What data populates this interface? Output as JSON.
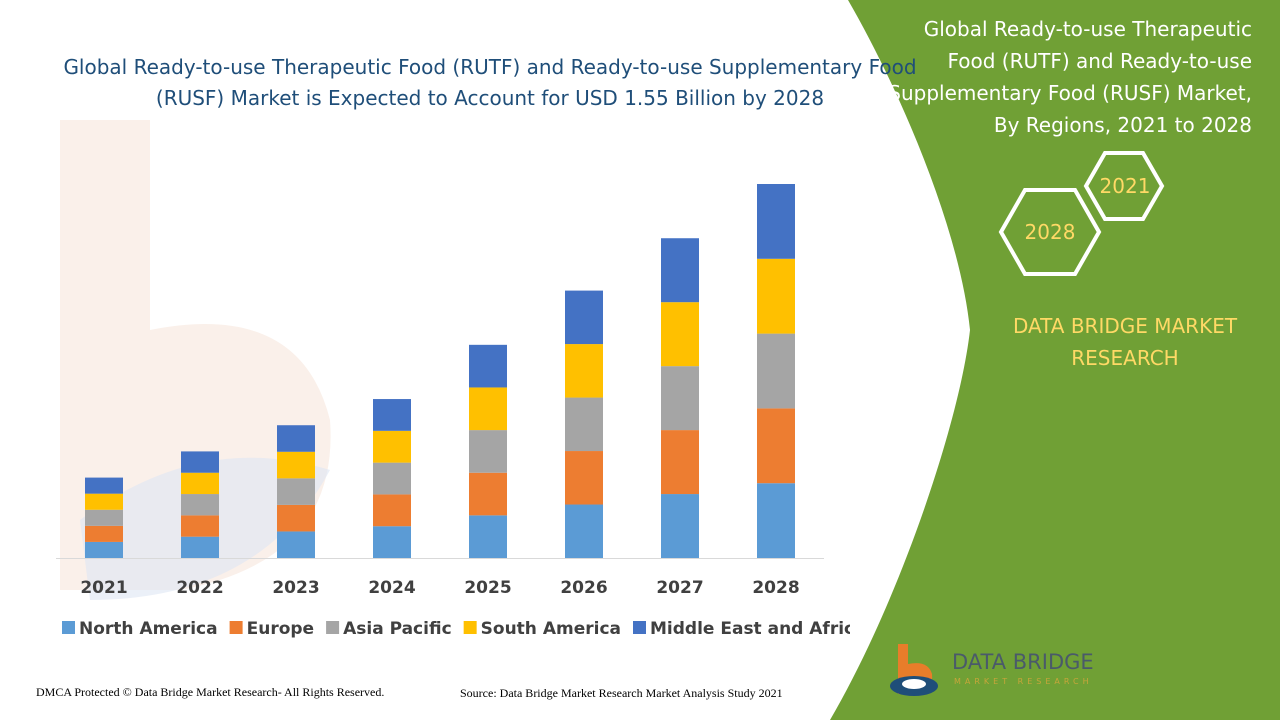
{
  "chart_title": "Global Ready-to-use Therapeutic Food (RUTF) and Ready-to-use Supplementary Food (RUSF) Market is Expected to Account for USD 1.55 Billion by 2028",
  "panel": {
    "title": "Global Ready-to-use Therapeutic Food (RUTF) and Ready-to-use Supplementary Food (RUSF) Market, By Regions, 2021 to 2028",
    "hex_start": "2021",
    "hex_end": "2028",
    "brand": "DATA BRIDGE MARKET RESEARCH"
  },
  "footer": {
    "left": "DMCA Protected © Data Bridge Market Research- All Rights Reserved.",
    "right": "Source: Data Bridge Market Research Market Analysis Study 2021"
  },
  "logo": {
    "name": "DATA BRIDGE",
    "tagline": "MARKET RESEARCH"
  },
  "colors": {
    "title": "#1f4e79",
    "panel_green": "#70a035",
    "accent_yellow": "#ffd966"
  },
  "chart_data": {
    "type": "bar",
    "stacked": true,
    "title": "",
    "xlabel": "",
    "ylabel": "",
    "ylim": [
      0,
      100
    ],
    "grid": false,
    "legend_position": "bottom",
    "categories": [
      "2021",
      "2022",
      "2023",
      "2024",
      "2025",
      "2026",
      "2027",
      "2028"
    ],
    "series": [
      {
        "name": "North America",
        "color": "#5b9bd5",
        "values": [
          4.3,
          5.7,
          7.1,
          8.5,
          11.4,
          14.3,
          17.1,
          20.0
        ]
      },
      {
        "name": "Europe",
        "color": "#ed7d31",
        "values": [
          4.3,
          5.7,
          7.1,
          8.5,
          11.4,
          14.3,
          17.1,
          20.0
        ]
      },
      {
        "name": "Asia Pacific",
        "color": "#a5a5a5",
        "values": [
          4.3,
          5.7,
          7.1,
          8.5,
          11.4,
          14.3,
          17.1,
          20.0
        ]
      },
      {
        "name": "South America",
        "color": "#ffc000",
        "values": [
          4.3,
          5.7,
          7.1,
          8.5,
          11.4,
          14.3,
          17.1,
          20.0
        ]
      },
      {
        "name": "Middle East and Africa",
        "color": "#4472c4",
        "values": [
          4.3,
          5.7,
          7.1,
          8.5,
          11.4,
          14.3,
          17.1,
          20.0
        ]
      }
    ]
  }
}
